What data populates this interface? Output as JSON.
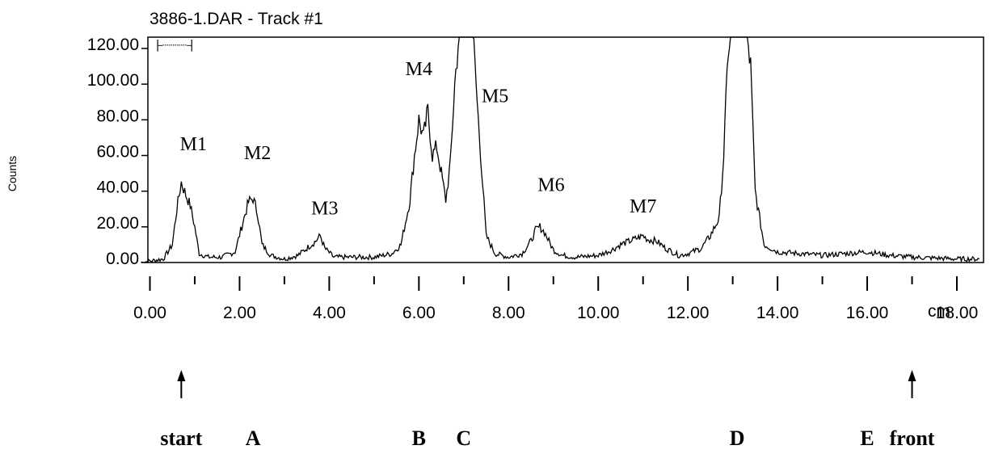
{
  "chart_data": {
    "type": "line",
    "title": "3886-1.DAR - Track #1",
    "ylabel": "Counts",
    "xlabel": "cm",
    "xlim": [
      -0.3,
      18.6
    ],
    "ylim": [
      0,
      130
    ],
    "x_ticks": [
      0,
      2,
      4,
      6,
      8,
      10,
      12,
      14,
      16,
      18
    ],
    "x_tick_labels": [
      "0.00",
      "2.00",
      "4.00",
      "6.00",
      "8.00",
      "10.00",
      "12.00",
      "14.00",
      "16.00",
      "18.00"
    ],
    "y_ticks": [
      0,
      20,
      40,
      60,
      80,
      100,
      120
    ],
    "y_tick_labels": [
      "0.00",
      "20.00",
      "40.00",
      "60.00",
      "80.00",
      "100.00",
      "120.00"
    ],
    "grid": false,
    "line_color": "#000000",
    "series": [
      {
        "x": [
          -0.2,
          0.3,
          0.5,
          0.6,
          0.7,
          0.8,
          0.9,
          1.0,
          1.1,
          1.3,
          1.6,
          1.9,
          2.1,
          2.2,
          2.3,
          2.4,
          2.5,
          2.7,
          3.0,
          3.3,
          3.5,
          3.7,
          3.8,
          3.9,
          4.1,
          4.5,
          5.0,
          5.4,
          5.6,
          5.8,
          5.9,
          6.0,
          6.1,
          6.2,
          6.3,
          6.4,
          6.5,
          6.6,
          6.7,
          6.8,
          6.9,
          7.0,
          7.1,
          7.2,
          7.3,
          7.5,
          7.7,
          8.0,
          8.3,
          8.5,
          8.6,
          8.7,
          8.8,
          8.9,
          9.0,
          9.2,
          9.5,
          10.0,
          10.3,
          10.5,
          10.7,
          10.9,
          11.0,
          11.1,
          11.3,
          11.5,
          11.8,
          12.0,
          12.3,
          12.5,
          12.7,
          12.8,
          12.9,
          13.0,
          13.1,
          13.2,
          13.3,
          13.4,
          13.5,
          13.7,
          14.0,
          14.5,
          15.0,
          16.0,
          16.5,
          17.0,
          18.0,
          18.5
        ],
        "y": [
          0,
          2,
          10,
          30,
          45,
          38,
          32,
          20,
          5,
          3,
          3,
          6,
          25,
          34,
          36,
          28,
          10,
          4,
          2,
          4,
          8,
          12,
          15,
          8,
          3,
          3,
          3,
          5,
          10,
          35,
          60,
          80,
          70,
          85,
          60,
          65,
          50,
          35,
          55,
          100,
          130,
          130,
          130,
          130,
          90,
          15,
          5,
          3,
          5,
          12,
          18,
          20,
          17,
          12,
          7,
          4,
          3,
          4,
          7,
          10,
          12,
          14,
          15,
          13,
          12,
          8,
          4,
          5,
          8,
          15,
          25,
          60,
          120,
          130,
          130,
          130,
          130,
          110,
          40,
          10,
          6,
          5,
          4,
          6,
          4,
          3,
          2,
          2
        ]
      }
    ],
    "scale_bar": "├┈┈┈┤",
    "peak_labels": [
      {
        "text": "M1",
        "x": 0.97,
        "y": 63
      },
      {
        "text": "M2",
        "x": 2.4,
        "y": 58
      },
      {
        "text": "M3",
        "x": 3.9,
        "y": 27
      },
      {
        "text": "M4",
        "x": 6.0,
        "y": 105
      },
      {
        "text": "M5",
        "x": 7.7,
        "y": 90
      },
      {
        "text": "M6",
        "x": 8.95,
        "y": 40
      },
      {
        "text": "M7",
        "x": 11.0,
        "y": 28
      }
    ],
    "markers": [
      {
        "text": "start",
        "x": 0.7,
        "arrow": true
      },
      {
        "text": "A",
        "x": 2.3,
        "arrow": false
      },
      {
        "text": "B",
        "x": 6.0,
        "arrow": false
      },
      {
        "text": "C",
        "x": 7.0,
        "arrow": false
      },
      {
        "text": "D",
        "x": 13.1,
        "arrow": false
      },
      {
        "text": "E",
        "x": 16.0,
        "arrow": false
      },
      {
        "text": "front",
        "x": 17.0,
        "arrow": true
      }
    ]
  }
}
